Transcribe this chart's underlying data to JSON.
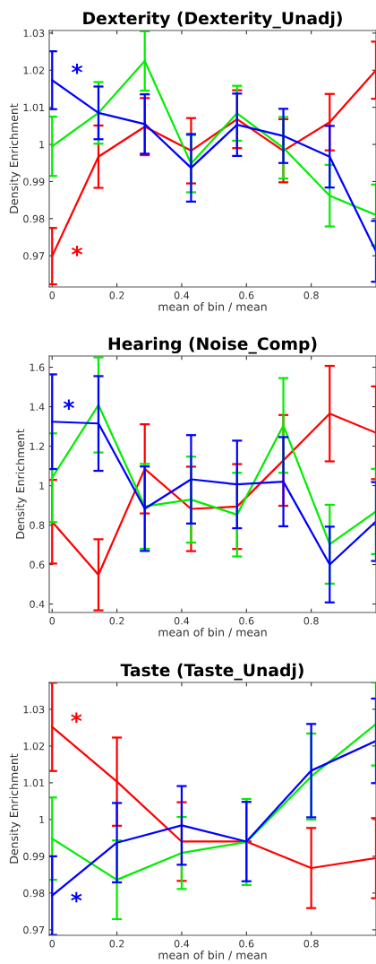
{
  "chart_data": [
    {
      "type": "line",
      "title": "Dexterity (Dexterity_Unadj)",
      "xlabel": "mean of bin / mean",
      "ylabel": "Density Enrichment",
      "x": [
        0,
        0.143,
        0.286,
        0.429,
        0.571,
        0.714,
        0.857,
        1
      ],
      "series": [
        {
          "color": "#ff0000",
          "values": [
            0.9699,
            0.9967,
            1.0048,
            0.9983,
            1.0068,
            0.9983,
            1.006,
            1.02
          ],
          "errors": [
            0.0076,
            0.0084,
            0.0077,
            0.0088,
            0.0078,
            0.0085,
            0.0076,
            0.0077
          ]
        },
        {
          "color": "#00ee00",
          "values": [
            0.9995,
            1.0085,
            1.0225,
            0.9948,
            1.0084,
            0.9991,
            0.9862,
            0.981
          ],
          "errors": [
            0.008,
            0.0083,
            0.008,
            0.0077,
            0.0074,
            0.0083,
            0.0083,
            0.0082
          ]
        },
        {
          "color": "#0000ff",
          "values": [
            1.0173,
            1.0085,
            1.0055,
            0.9937,
            1.0053,
            1.0023,
            0.9967,
            0.9712
          ],
          "errors": [
            0.0078,
            0.0071,
            0.008,
            0.0091,
            0.0084,
            0.0073,
            0.0083,
            0.0082
          ]
        }
      ],
      "xlim": [
        -0.009,
        1.0
      ],
      "xticks": [
        0,
        0.2,
        0.4,
        0.6,
        0.8
      ],
      "ylim": [
        0.9616,
        1.0307
      ],
      "yticks": [
        0.97,
        0.98,
        0.99,
        1,
        1.01,
        1.02,
        1.03
      ],
      "annotations": [
        "*",
        "*"
      ],
      "grid": false
    },
    {
      "type": "line",
      "title": "Hearing (Noise_Comp)",
      "xlabel": "mean of bin / mean",
      "ylabel": "Density Enrichment",
      "x": [
        0,
        0.143,
        0.286,
        0.429,
        0.571,
        0.714,
        0.857,
        1
      ],
      "series": [
        {
          "color": "#ff0000",
          "values": [
            0.817,
            0.548,
            1.085,
            0.882,
            0.894,
            1.128,
            1.365,
            1.268
          ],
          "errors": [
            0.212,
            0.18,
            0.226,
            0.214,
            0.215,
            0.23,
            0.242,
            0.235
          ]
        },
        {
          "color": "#00ee00",
          "values": [
            1.04,
            1.409,
            0.895,
            0.929,
            0.853,
            1.305,
            0.703,
            0.869
          ],
          "errors": [
            0.225,
            0.241,
            0.215,
            0.218,
            0.212,
            0.24,
            0.2,
            0.216
          ]
        },
        {
          "color": "#0000ff",
          "values": [
            1.324,
            1.315,
            0.883,
            1.032,
            1.006,
            1.02,
            0.6,
            0.818
          ],
          "errors": [
            0.24,
            0.24,
            0.214,
            0.224,
            0.222,
            0.226,
            0.192,
            0.2
          ]
        }
      ],
      "xlim": [
        -0.009,
        1.0
      ],
      "xticks": [
        0,
        0.2,
        0.4,
        0.6,
        0.8
      ],
      "ylim": [
        0.357,
        1.657
      ],
      "yticks": [
        0.4,
        0.6,
        0.8,
        1,
        1.2,
        1.4,
        1.6
      ],
      "annotations": [
        "*"
      ],
      "grid": false
    },
    {
      "type": "line",
      "title": "Taste (Taste_Unadj)",
      "xlabel": "mean of bin / mean",
      "ylabel": "Density Enrichment",
      "x": [
        0,
        0.2,
        0.4,
        0.6,
        0.8,
        1
      ],
      "series": [
        {
          "color": "#ff0000",
          "values": [
            1.0252,
            1.0103,
            0.994,
            0.994,
            0.9868,
            0.9895
          ],
          "errors": [
            0.012,
            0.012,
            0.0107,
            null,
            0.0109,
            0.0109
          ]
        },
        {
          "color": "#00ee00",
          "values": [
            0.9948,
            0.9836,
            0.9909,
            0.9939,
            1.0117,
            1.026
          ],
          "errors": [
            0.0112,
            0.0107,
            0.0098,
            0.0117,
            0.0117,
            0.0113
          ]
        },
        {
          "color": "#0000ff",
          "values": [
            0.9793,
            0.9937,
            0.9984,
            0.994,
            1.0133,
            1.0214
          ],
          "errors": [
            0.0107,
            0.0108,
            0.0107,
            0.0108,
            0.0127,
            0.0115
          ]
        }
      ],
      "xlim": [
        -0.009,
        1.0
      ],
      "xticks": [
        0,
        0.2,
        0.4,
        0.6,
        0.8
      ],
      "ylim": [
        0.9685,
        1.0373
      ],
      "yticks": [
        0.97,
        0.98,
        0.99,
        1,
        1.01,
        1.02,
        1.03
      ],
      "annotations": [
        "*",
        "*"
      ],
      "grid": false
    }
  ]
}
